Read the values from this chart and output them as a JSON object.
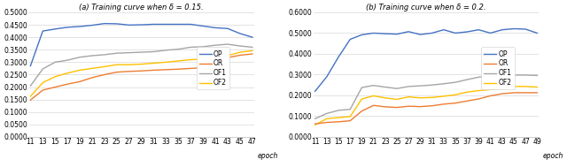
{
  "left": {
    "title": "(a) Training curve when δ = 0.15.",
    "xlabel": "epoch",
    "ylim": [
      0.0,
      0.5
    ],
    "yticks": [
      0.0,
      0.05,
      0.1,
      0.15,
      0.2,
      0.25,
      0.3,
      0.35,
      0.4,
      0.45,
      0.5
    ],
    "ytick_labels": [
      "0.0000",
      "0.0500",
      "0.1000",
      "0.1500",
      "0.2000",
      "0.2500",
      "0.3000",
      "0.3500",
      "0.4000",
      "0.4500",
      "0.5000"
    ],
    "epochs": [
      11,
      13,
      15,
      17,
      19,
      21,
      23,
      25,
      27,
      29,
      31,
      33,
      35,
      37,
      39,
      41,
      43,
      45,
      47
    ],
    "OP": [
      0.285,
      0.425,
      0.433,
      0.44,
      0.443,
      0.448,
      0.455,
      0.454,
      0.449,
      0.45,
      0.452,
      0.452,
      0.452,
      0.452,
      0.445,
      0.438,
      0.435,
      0.415,
      0.4
    ],
    "OR": [
      0.148,
      0.188,
      0.2,
      0.212,
      0.222,
      0.238,
      0.25,
      0.26,
      0.263,
      0.265,
      0.268,
      0.27,
      0.272,
      0.275,
      0.278,
      0.3,
      0.318,
      0.328,
      0.333
    ],
    "OF1": [
      0.205,
      0.273,
      0.3,
      0.308,
      0.32,
      0.326,
      0.33,
      0.336,
      0.338,
      0.34,
      0.342,
      0.348,
      0.352,
      0.36,
      0.362,
      0.368,
      0.372,
      0.365,
      0.36
    ],
    "OF2": [
      0.163,
      0.218,
      0.242,
      0.256,
      0.268,
      0.275,
      0.282,
      0.29,
      0.29,
      0.292,
      0.296,
      0.3,
      0.305,
      0.31,
      0.312,
      0.318,
      0.326,
      0.34,
      0.346
    ]
  },
  "right": {
    "title": "(b) Training curve when δ = 0.2.",
    "xlabel": "epoch",
    "ylim": [
      0.0,
      0.6
    ],
    "yticks": [
      0.0,
      0.1,
      0.2,
      0.3,
      0.4,
      0.5,
      0.6
    ],
    "ytick_labels": [
      "0.0000",
      "0.1000",
      "0.2000",
      "0.3000",
      "0.4000",
      "0.5000",
      "0.6000"
    ],
    "epochs": [
      11,
      13,
      15,
      17,
      19,
      21,
      23,
      25,
      27,
      29,
      31,
      33,
      35,
      37,
      39,
      41,
      43,
      45,
      47,
      49
    ],
    "OP": [
      0.22,
      0.29,
      0.385,
      0.47,
      0.492,
      0.5,
      0.497,
      0.495,
      0.507,
      0.493,
      0.5,
      0.516,
      0.5,
      0.506,
      0.516,
      0.5,
      0.516,
      0.521,
      0.519,
      0.5
    ],
    "OR": [
      0.063,
      0.07,
      0.073,
      0.078,
      0.125,
      0.152,
      0.145,
      0.142,
      0.148,
      0.146,
      0.15,
      0.158,
      0.163,
      0.173,
      0.183,
      0.198,
      0.208,
      0.213,
      0.213,
      0.213
    ],
    "OF1": [
      0.088,
      0.113,
      0.128,
      0.133,
      0.238,
      0.248,
      0.24,
      0.233,
      0.243,
      0.246,
      0.25,
      0.256,
      0.263,
      0.276,
      0.288,
      0.293,
      0.296,
      0.298,
      0.298,
      0.296
    ],
    "OF2": [
      0.058,
      0.088,
      0.093,
      0.098,
      0.183,
      0.198,
      0.188,
      0.181,
      0.193,
      0.188,
      0.19,
      0.196,
      0.203,
      0.216,
      0.223,
      0.228,
      0.233,
      0.243,
      0.243,
      0.24
    ]
  },
  "colors": {
    "OP": "#4472C4",
    "OR": "#ED7D31",
    "OF1": "#A5A5A5",
    "OF2": "#FFC000"
  },
  "line_width": 1.0,
  "font_size": 5.5,
  "title_font_size": 6.0,
  "legend_font_size": 5.5
}
